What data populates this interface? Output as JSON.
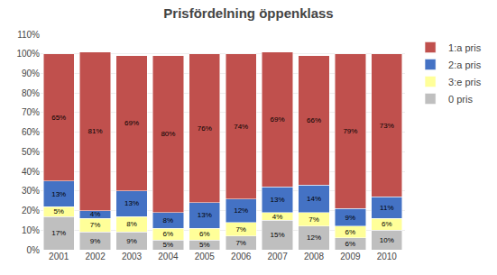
{
  "chart_data": {
    "type": "bar",
    "stacked": true,
    "title": "Prisfördelning öppenklass",
    "categories": [
      "2001",
      "2002",
      "2003",
      "2004",
      "2005",
      "2006",
      "2007",
      "2008",
      "2009",
      "2010"
    ],
    "series": [
      {
        "name": "0 pris",
        "color": "#bfbfbf",
        "values": [
          17,
          9,
          9,
          5,
          5,
          7,
          15,
          12,
          6,
          10
        ],
        "value_labels": [
          "17%",
          "9%",
          "9%",
          "5%",
          "5%",
          "7%",
          "15%",
          "12%",
          "6%",
          "10%"
        ]
      },
      {
        "name": "3:e pris",
        "color": "#ffff99",
        "values": [
          5,
          7,
          8,
          6,
          6,
          7,
          4,
          7,
          6,
          6
        ],
        "value_labels": [
          "5%",
          "7%",
          "8%",
          "6%",
          "6%",
          "7%",
          "4%",
          "7%",
          "6%",
          "6%"
        ]
      },
      {
        "name": "2:a pris",
        "color": "#4472c4",
        "values": [
          13,
          4,
          13,
          8,
          13,
          12,
          13,
          14,
          9,
          11
        ],
        "value_labels": [
          "13%",
          "4%",
          "13%",
          "8%",
          "13%",
          "12%",
          "13%",
          "14%",
          "9%",
          "11%"
        ]
      },
      {
        "name": "1:a pris",
        "color": "#c0504d",
        "values": [
          65,
          81,
          69,
          80,
          76,
          74,
          69,
          66,
          79,
          73
        ],
        "value_labels": [
          "65%",
          "81%",
          "69%",
          "80%",
          "76%",
          "74%",
          "69%",
          "66%",
          "79%",
          "73%"
        ]
      }
    ],
    "ylim": [
      0,
      110
    ],
    "yticks": [
      {
        "value": 0,
        "label": "0%"
      },
      {
        "value": 10,
        "label": "10%"
      },
      {
        "value": 20,
        "label": "20%"
      },
      {
        "value": 30,
        "label": "30%"
      },
      {
        "value": 40,
        "label": "40%"
      },
      {
        "value": 50,
        "label": "50%"
      },
      {
        "value": 60,
        "label": "60%"
      },
      {
        "value": 70,
        "label": "70%"
      },
      {
        "value": 80,
        "label": "80%"
      },
      {
        "value": 90,
        "label": "90%"
      },
      {
        "value": 100,
        "label": "100%"
      },
      {
        "value": 110,
        "label": "110%"
      }
    ],
    "grid": true,
    "legend": "right",
    "data_labels": true
  }
}
